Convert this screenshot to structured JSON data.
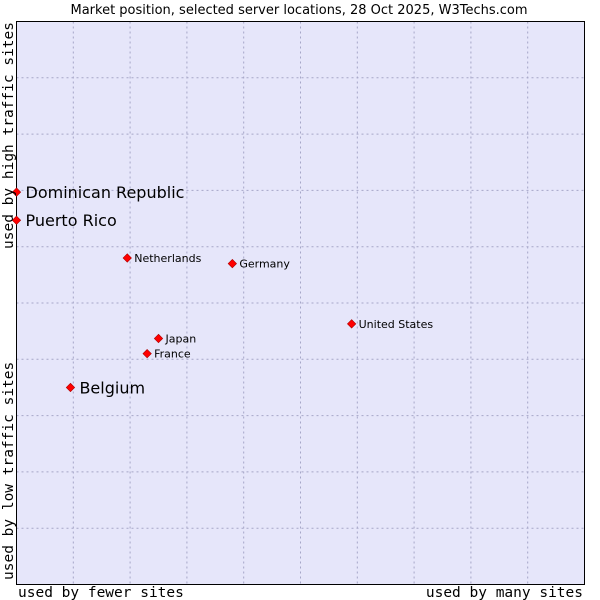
{
  "chart_data": {
    "type": "scatter",
    "title": "Market position, selected server locations, 28 Oct 2025, W3Techs.com",
    "xlabel_left": "used by fewer sites",
    "xlabel_right": "used by many sites",
    "ylabel_bottom": "used by low traffic sites",
    "ylabel_top": "used by high traffic sites",
    "xlim": [
      0,
      10
    ],
    "ylim": [
      0,
      10
    ],
    "grid": true,
    "background": "#e6e6fa",
    "grid_color": "#a6a6c8",
    "point_color": "#ff0000",
    "points": [
      {
        "name": "Dominican Republic",
        "x": 0.0,
        "y": 6.97,
        "highlight": true
      },
      {
        "name": "Puerto Rico",
        "x": 0.0,
        "y": 6.47,
        "highlight": true
      },
      {
        "name": "Netherlands",
        "x": 1.95,
        "y": 5.8,
        "highlight": false
      },
      {
        "name": "Germany",
        "x": 3.8,
        "y": 5.7,
        "highlight": false
      },
      {
        "name": "United States",
        "x": 5.9,
        "y": 4.63,
        "highlight": false
      },
      {
        "name": "Japan",
        "x": 2.5,
        "y": 4.37,
        "highlight": false
      },
      {
        "name": "France",
        "x": 2.3,
        "y": 4.1,
        "highlight": false
      },
      {
        "name": "Belgium",
        "x": 0.95,
        "y": 3.5,
        "highlight": true
      }
    ]
  }
}
